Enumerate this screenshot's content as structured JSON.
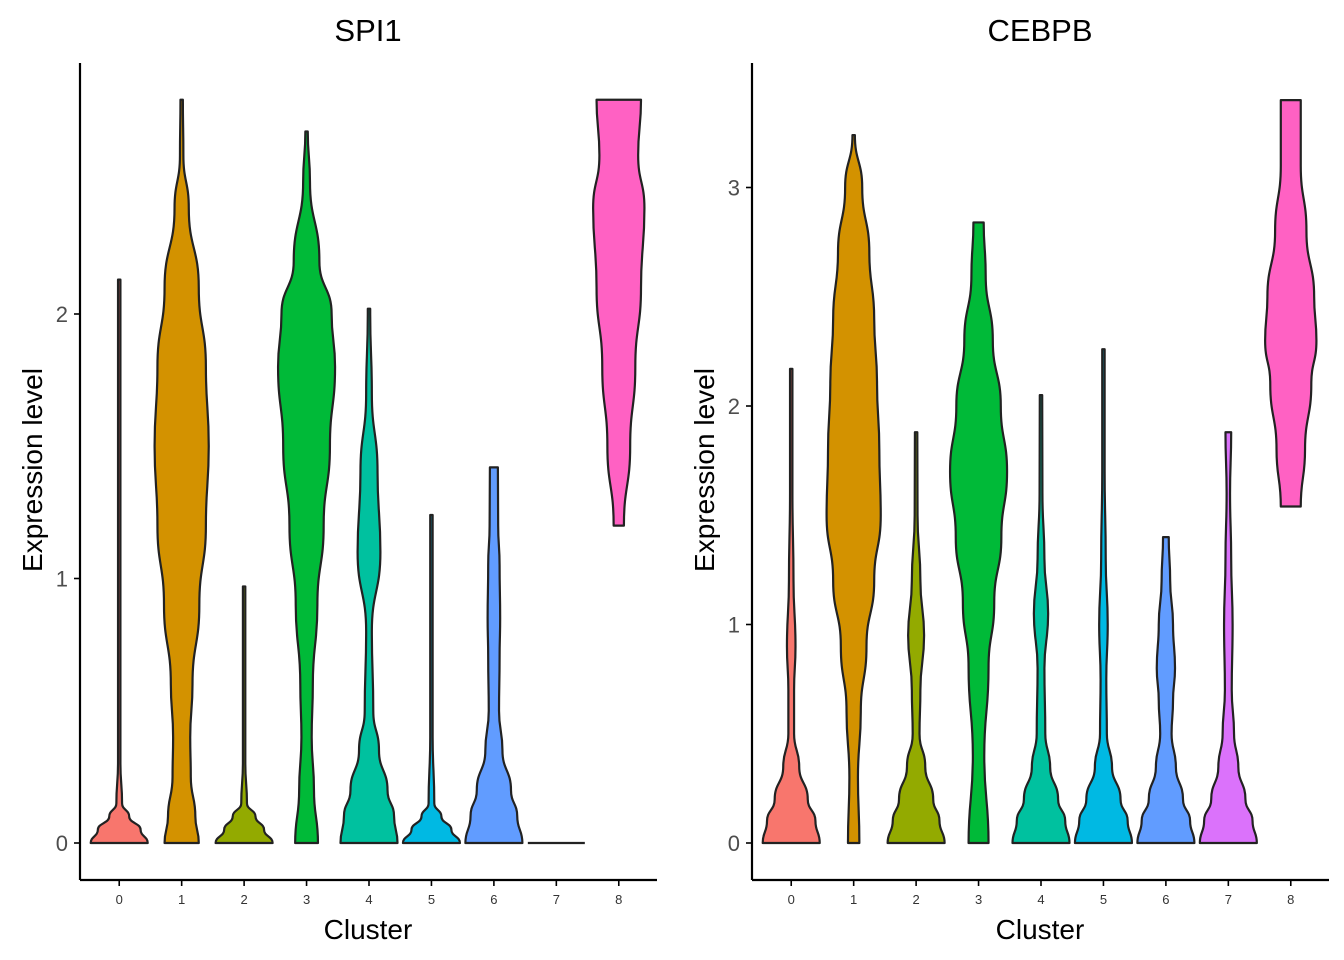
{
  "chart_data": [
    {
      "type": "violin",
      "title": "SPI1",
      "xlabel": "Cluster",
      "ylabel": "Expression level",
      "categories": [
        "0",
        "1",
        "2",
        "3",
        "4",
        "5",
        "6",
        "7",
        "8"
      ],
      "yticks": [
        "0",
        "1",
        "2"
      ],
      "ylim": [
        -0.13,
        3.0
      ],
      "grid": false,
      "legend": "none",
      "colors": [
        "#F8766D",
        "#D39200",
        "#93AA00",
        "#00BA38",
        "#00C19F",
        "#00B9E3",
        "#619CFF",
        "#DB72FB",
        "#FF61C3"
      ],
      "series": [
        {
          "category": "0",
          "max": 2.13,
          "profile": [
            [
              0.0,
              1.0
            ],
            [
              0.05,
              0.75
            ],
            [
              0.1,
              0.35
            ],
            [
              0.15,
              0.1
            ],
            [
              0.3,
              0.02
            ],
            [
              2.13,
              0.0
            ]
          ]
        },
        {
          "category": "1",
          "max": 2.81,
          "profile": [
            [
              0.0,
              0.6
            ],
            [
              0.1,
              0.48
            ],
            [
              0.25,
              0.32
            ],
            [
              0.4,
              0.3
            ],
            [
              0.6,
              0.38
            ],
            [
              0.9,
              0.62
            ],
            [
              1.2,
              0.85
            ],
            [
              1.5,
              0.95
            ],
            [
              1.8,
              0.85
            ],
            [
              2.1,
              0.6
            ],
            [
              2.4,
              0.25
            ],
            [
              2.6,
              0.06
            ],
            [
              2.81,
              0.0
            ]
          ]
        },
        {
          "category": "2",
          "max": 0.97,
          "profile": [
            [
              0.0,
              1.0
            ],
            [
              0.05,
              0.7
            ],
            [
              0.1,
              0.4
            ],
            [
              0.15,
              0.1
            ],
            [
              0.3,
              0.02
            ],
            [
              0.97,
              0.0
            ]
          ]
        },
        {
          "category": "3",
          "max": 2.69,
          "profile": [
            [
              0.0,
              0.4
            ],
            [
              0.2,
              0.26
            ],
            [
              0.4,
              0.18
            ],
            [
              0.6,
              0.22
            ],
            [
              0.9,
              0.38
            ],
            [
              1.2,
              0.6
            ],
            [
              1.5,
              0.82
            ],
            [
              1.8,
              1.0
            ],
            [
              2.0,
              0.88
            ],
            [
              2.2,
              0.45
            ],
            [
              2.5,
              0.12
            ],
            [
              2.69,
              0.0
            ]
          ]
        },
        {
          "category": "4",
          "max": 2.02,
          "profile": [
            [
              0.0,
              1.0
            ],
            [
              0.1,
              0.88
            ],
            [
              0.2,
              0.65
            ],
            [
              0.35,
              0.35
            ],
            [
              0.5,
              0.15
            ],
            [
              0.8,
              0.1
            ],
            [
              1.1,
              0.4
            ],
            [
              1.4,
              0.3
            ],
            [
              1.7,
              0.1
            ],
            [
              2.0,
              0.03
            ],
            [
              2.02,
              0.0
            ]
          ]
        },
        {
          "category": "5",
          "max": 1.24,
          "profile": [
            [
              0.0,
              1.0
            ],
            [
              0.05,
              0.7
            ],
            [
              0.1,
              0.35
            ],
            [
              0.15,
              0.1
            ],
            [
              0.4,
              0.03
            ],
            [
              1.24,
              0.0
            ]
          ]
        },
        {
          "category": "6",
          "max": 1.42,
          "profile": [
            [
              0.0,
              1.0
            ],
            [
              0.1,
              0.82
            ],
            [
              0.2,
              0.6
            ],
            [
              0.35,
              0.3
            ],
            [
              0.5,
              0.18
            ],
            [
              0.7,
              0.2
            ],
            [
              0.85,
              0.22
            ],
            [
              1.05,
              0.2
            ],
            [
              1.2,
              0.15
            ],
            [
              1.42,
              0.14
            ]
          ]
        },
        {
          "category": "7",
          "max": 0.0,
          "profile": [
            [
              0.0,
              1.0
            ]
          ]
        },
        {
          "category": "8",
          "max": 2.81,
          "profile": [
            [
              1.2,
              0.18
            ],
            [
              1.5,
              0.4
            ],
            [
              1.8,
              0.58
            ],
            [
              2.1,
              0.78
            ],
            [
              2.4,
              0.9
            ],
            [
              2.6,
              0.68
            ],
            [
              2.81,
              0.78
            ]
          ]
        }
      ]
    },
    {
      "type": "violin",
      "title": "CEBPB",
      "xlabel": "Cluster",
      "ylabel": "Expression level",
      "categories": [
        "0",
        "1",
        "2",
        "3",
        "4",
        "5",
        "6",
        "7",
        "8"
      ],
      "yticks": [
        "0",
        "1",
        "2",
        "3"
      ],
      "ylim": [
        -0.16,
        3.6
      ],
      "grid": false,
      "legend": "none",
      "colors": [
        "#F8766D",
        "#D39200",
        "#93AA00",
        "#00BA38",
        "#00C19F",
        "#00B9E3",
        "#619CFF",
        "#DB72FB",
        "#FF61C3"
      ],
      "series": [
        {
          "category": "0",
          "max": 2.17,
          "profile": [
            [
              0.0,
              1.0
            ],
            [
              0.1,
              0.85
            ],
            [
              0.2,
              0.58
            ],
            [
              0.35,
              0.28
            ],
            [
              0.5,
              0.1
            ],
            [
              0.7,
              0.1
            ],
            [
              0.9,
              0.15
            ],
            [
              1.2,
              0.08
            ],
            [
              1.6,
              0.04
            ],
            [
              2.17,
              0.0
            ]
          ]
        },
        {
          "category": "1",
          "max": 3.24,
          "profile": [
            [
              0.0,
              0.2
            ],
            [
              0.3,
              0.15
            ],
            [
              0.6,
              0.25
            ],
            [
              0.9,
              0.45
            ],
            [
              1.2,
              0.72
            ],
            [
              1.5,
              0.95
            ],
            [
              1.8,
              0.9
            ],
            [
              2.1,
              0.82
            ],
            [
              2.4,
              0.72
            ],
            [
              2.7,
              0.55
            ],
            [
              3.0,
              0.3
            ],
            [
              3.24,
              0.0
            ]
          ]
        },
        {
          "category": "2",
          "max": 1.88,
          "profile": [
            [
              0.0,
              1.0
            ],
            [
              0.1,
              0.82
            ],
            [
              0.2,
              0.6
            ],
            [
              0.35,
              0.32
            ],
            [
              0.5,
              0.12
            ],
            [
              0.7,
              0.15
            ],
            [
              0.95,
              0.28
            ],
            [
              1.2,
              0.15
            ],
            [
              1.5,
              0.05
            ],
            [
              1.88,
              0.0
            ]
          ]
        },
        {
          "category": "3",
          "max": 2.84,
          "profile": [
            [
              0.0,
              0.35
            ],
            [
              0.4,
              0.2
            ],
            [
              0.8,
              0.35
            ],
            [
              1.1,
              0.55
            ],
            [
              1.4,
              0.8
            ],
            [
              1.7,
              1.0
            ],
            [
              2.0,
              0.78
            ],
            [
              2.3,
              0.5
            ],
            [
              2.6,
              0.25
            ],
            [
              2.84,
              0.18
            ]
          ]
        },
        {
          "category": "4",
          "max": 2.05,
          "profile": [
            [
              0.0,
              1.0
            ],
            [
              0.1,
              0.85
            ],
            [
              0.2,
              0.6
            ],
            [
              0.35,
              0.32
            ],
            [
              0.5,
              0.15
            ],
            [
              0.8,
              0.12
            ],
            [
              1.05,
              0.25
            ],
            [
              1.3,
              0.12
            ],
            [
              1.6,
              0.05
            ],
            [
              2.05,
              0.0
            ]
          ]
        },
        {
          "category": "5",
          "max": 2.26,
          "profile": [
            [
              0.0,
              1.0
            ],
            [
              0.1,
              0.85
            ],
            [
              0.2,
              0.6
            ],
            [
              0.35,
              0.3
            ],
            [
              0.5,
              0.12
            ],
            [
              0.75,
              0.1
            ],
            [
              1.0,
              0.15
            ],
            [
              1.3,
              0.08
            ],
            [
              1.7,
              0.03
            ],
            [
              2.26,
              0.0
            ]
          ]
        },
        {
          "category": "6",
          "max": 1.4,
          "profile": [
            [
              0.0,
              1.0
            ],
            [
              0.1,
              0.85
            ],
            [
              0.2,
              0.6
            ],
            [
              0.35,
              0.35
            ],
            [
              0.5,
              0.2
            ],
            [
              0.65,
              0.25
            ],
            [
              0.8,
              0.32
            ],
            [
              1.0,
              0.25
            ],
            [
              1.2,
              0.15
            ],
            [
              1.4,
              0.1
            ]
          ]
        },
        {
          "category": "7",
          "max": 1.88,
          "profile": [
            [
              0.0,
              1.0
            ],
            [
              0.1,
              0.85
            ],
            [
              0.2,
              0.6
            ],
            [
              0.35,
              0.35
            ],
            [
              0.5,
              0.2
            ],
            [
              0.7,
              0.12
            ],
            [
              1.0,
              0.15
            ],
            [
              1.3,
              0.1
            ],
            [
              1.6,
              0.06
            ],
            [
              1.88,
              0.1
            ]
          ]
        },
        {
          "category": "8",
          "max": 3.4,
          "profile": [
            [
              1.54,
              0.35
            ],
            [
              1.8,
              0.5
            ],
            [
              2.1,
              0.72
            ],
            [
              2.3,
              0.9
            ],
            [
              2.5,
              0.82
            ],
            [
              2.8,
              0.55
            ],
            [
              3.1,
              0.35
            ],
            [
              3.4,
              0.35
            ]
          ]
        }
      ]
    }
  ]
}
